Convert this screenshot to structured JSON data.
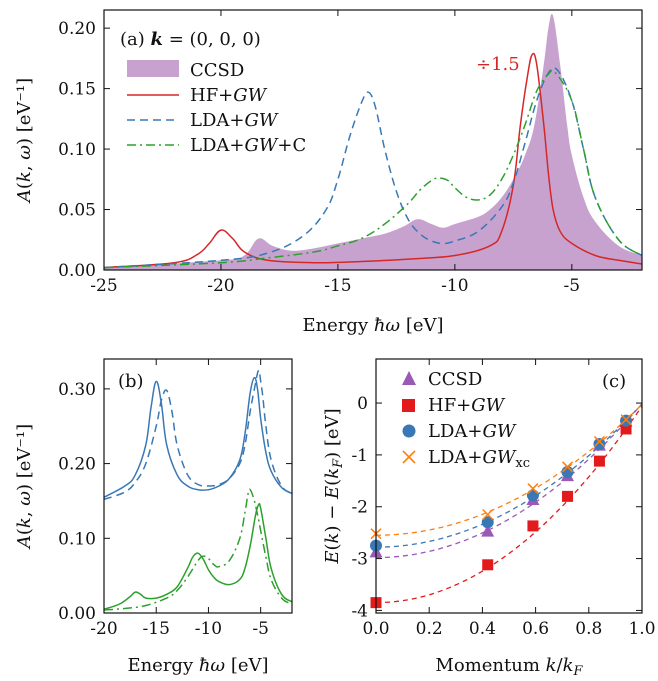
{
  "chart_data": [
    {
      "type": "area+line",
      "panel_label": "(a) k = (0, 0, 0)",
      "annotation": "÷1.5",
      "xlabel": "Energy ħω [eV]",
      "ylabel": "A(k, ω)  [eV⁻¹]",
      "xlim": [
        -25,
        -2
      ],
      "ylim": [
        0,
        0.215
      ],
      "xticks": [
        -25,
        -20,
        -15,
        -10,
        -5
      ],
      "xtick_labels": [
        "-25",
        "-20",
        "-15",
        "-10",
        "-5"
      ],
      "yticks": [
        0,
        0.05,
        0.1,
        0.15,
        0.2
      ],
      "ytick_labels": [
        "0.00",
        "0.05",
        "0.10",
        "0.15",
        "0.20"
      ],
      "legend_position": "top-left",
      "colors": {
        "ccsd": "#c8a2cf",
        "hf": "#d62728",
        "lda": "#3a78b5",
        "ldac": "#2ca02c"
      },
      "series": [
        {
          "name": "CCSD",
          "style": "filled",
          "x": [
            -25,
            -20,
            -19,
            -18.4,
            -17.8,
            -17,
            -16,
            -15,
            -14,
            -13,
            -12.2,
            -11.6,
            -11,
            -10.5,
            -10,
            -9,
            -8.5,
            -8,
            -7.5,
            -7,
            -6.6,
            -6.2,
            -6,
            -5.8,
            -5.5,
            -5.2,
            -5,
            -4.5,
            -4,
            -3,
            -2
          ],
          "y": [
            0.002,
            0.008,
            0.012,
            0.026,
            0.02,
            0.016,
            0.018,
            0.022,
            0.026,
            0.03,
            0.036,
            0.042,
            0.038,
            0.035,
            0.038,
            0.044,
            0.05,
            0.06,
            0.075,
            0.095,
            0.12,
            0.17,
            0.2,
            0.21,
            0.17,
            0.12,
            0.095,
            0.06,
            0.04,
            0.02,
            0.012
          ]
        },
        {
          "name": "HF+GW",
          "style": "solid",
          "x": [
            -25,
            -22,
            -21,
            -20.5,
            -20,
            -19.5,
            -19,
            -18,
            -16,
            -14,
            -12,
            -10,
            -8.5,
            -8,
            -7.5,
            -7.2,
            -6.9,
            -6.7,
            -6.5,
            -6.2,
            -6,
            -5.8,
            -5.5,
            -5,
            -4,
            -3,
            -2
          ],
          "y": [
            0.002,
            0.006,
            0.013,
            0.022,
            0.033,
            0.026,
            0.015,
            0.008,
            0.006,
            0.007,
            0.009,
            0.012,
            0.02,
            0.032,
            0.07,
            0.12,
            0.16,
            0.178,
            0.17,
            0.12,
            0.08,
            0.05,
            0.032,
            0.022,
            0.012,
            0.008,
            0.005
          ]
        },
        {
          "name": "LDA+GW",
          "style": "dashed",
          "x": [
            -25,
            -20,
            -18,
            -16.5,
            -15.5,
            -15,
            -14.5,
            -14,
            -13.7,
            -13.4,
            -13,
            -12.5,
            -12,
            -11.5,
            -11,
            -10.5,
            -10,
            -9,
            -8,
            -7.5,
            -7,
            -6.5,
            -6,
            -5.6,
            -5,
            -4.5,
            -4,
            -3,
            -2
          ],
          "y": [
            0.002,
            0.008,
            0.014,
            0.028,
            0.05,
            0.075,
            0.11,
            0.138,
            0.147,
            0.135,
            0.1,
            0.065,
            0.042,
            0.03,
            0.024,
            0.022,
            0.024,
            0.032,
            0.052,
            0.072,
            0.105,
            0.14,
            0.163,
            0.165,
            0.14,
            0.1,
            0.06,
            0.025,
            0.012
          ]
        },
        {
          "name": "LDA+GW+C",
          "style": "dashdot",
          "x": [
            -25,
            -20,
            -18,
            -16,
            -15,
            -14,
            -13,
            -12,
            -11.5,
            -11,
            -10.7,
            -10.3,
            -10,
            -9.5,
            -9,
            -8.5,
            -8,
            -7.5,
            -7,
            -6.5,
            -6,
            -5.7,
            -5,
            -4.5,
            -4,
            -3,
            -2
          ],
          "y": [
            0.002,
            0.006,
            0.01,
            0.015,
            0.02,
            0.026,
            0.038,
            0.055,
            0.066,
            0.074,
            0.076,
            0.074,
            0.068,
            0.06,
            0.058,
            0.062,
            0.075,
            0.095,
            0.12,
            0.148,
            0.162,
            0.163,
            0.14,
            0.1,
            0.06,
            0.025,
            0.012
          ]
        }
      ]
    },
    {
      "type": "line",
      "panel_label": "(b)",
      "xlabel": "Energy ħω [eV]",
      "ylabel": "A(k, ω)  [eV⁻¹]",
      "xlim": [
        -20,
        -2
      ],
      "ylim": [
        0,
        0.34
      ],
      "xticks": [
        -20,
        -15,
        -10,
        -5
      ],
      "xtick_labels": [
        "-20",
        "-15",
        "-10",
        "-5"
      ],
      "yticks": [
        0,
        0.1,
        0.2,
        0.3
      ],
      "ytick_labels": [
        "0.00",
        "0.10",
        "0.20",
        "0.30"
      ],
      "series": [
        {
          "name": "upper-solid",
          "color": "#3a78b5",
          "style": "solid",
          "x": [
            -20,
            -18,
            -17,
            -16,
            -15.5,
            -15,
            -14.5,
            -14,
            -13,
            -12,
            -11,
            -10,
            -9,
            -8,
            -7,
            -6.5,
            -6,
            -5.6,
            -5.3,
            -5,
            -4.5,
            -4,
            -3,
            -2
          ],
          "y": [
            0.155,
            0.17,
            0.185,
            0.225,
            0.275,
            0.31,
            0.28,
            0.225,
            0.185,
            0.17,
            0.165,
            0.165,
            0.17,
            0.18,
            0.205,
            0.24,
            0.295,
            0.315,
            0.3,
            0.26,
            0.215,
            0.19,
            0.168,
            0.16
          ]
        },
        {
          "name": "upper-dashed",
          "color": "#3a78b5",
          "style": "dashed",
          "x": [
            -20,
            -18,
            -17,
            -16,
            -15,
            -14.5,
            -14,
            -13.5,
            -13,
            -12,
            -11,
            -10,
            -9,
            -8,
            -7,
            -6.5,
            -6,
            -5.6,
            -5.2,
            -5,
            -4.8,
            -4.5,
            -4,
            -3,
            -2
          ],
          "y": [
            0.152,
            0.162,
            0.175,
            0.2,
            0.25,
            0.285,
            0.298,
            0.27,
            0.225,
            0.185,
            0.172,
            0.17,
            0.172,
            0.18,
            0.2,
            0.225,
            0.27,
            0.3,
            0.325,
            0.31,
            0.29,
            0.25,
            0.205,
            0.17,
            0.16
          ]
        },
        {
          "name": "lower-solid",
          "color": "#2ca02c",
          "style": "solid",
          "x": [
            -20,
            -18.5,
            -17.5,
            -17,
            -16.5,
            -16,
            -15,
            -14,
            -13,
            -12,
            -11.5,
            -11,
            -10.5,
            -10,
            -9.5,
            -9,
            -8,
            -7,
            -6.5,
            -6,
            -5.5,
            -5.2,
            -5,
            -4.5,
            -4,
            -3,
            -2
          ],
          "y": [
            0.005,
            0.012,
            0.022,
            0.028,
            0.025,
            0.02,
            0.02,
            0.025,
            0.035,
            0.06,
            0.075,
            0.08,
            0.072,
            0.058,
            0.048,
            0.042,
            0.038,
            0.045,
            0.06,
            0.09,
            0.13,
            0.145,
            0.14,
            0.1,
            0.06,
            0.025,
            0.015
          ]
        },
        {
          "name": "lower-dashdot",
          "color": "#2ca02c",
          "style": "dashdot",
          "x": [
            -20,
            -18,
            -16,
            -14,
            -13,
            -12,
            -11,
            -10.5,
            -10,
            -9.5,
            -9,
            -8,
            -7,
            -6.5,
            -6.2,
            -6,
            -5.6,
            -5.2,
            -5,
            -4.5,
            -4,
            -3,
            -2
          ],
          "y": [
            0.004,
            0.006,
            0.01,
            0.02,
            0.03,
            0.048,
            0.07,
            0.076,
            0.073,
            0.065,
            0.062,
            0.07,
            0.1,
            0.135,
            0.16,
            0.165,
            0.15,
            0.125,
            0.11,
            0.075,
            0.045,
            0.02,
            0.012
          ]
        }
      ]
    },
    {
      "type": "scatter",
      "panel_label": "(c)",
      "xlabel": "Momentum k/k_F",
      "ylabel": "E(k) − E(k_F)  [eV]",
      "xlim": [
        0,
        1
      ],
      "ylim": [
        -4.05,
        0.85
      ],
      "xticks": [
        0,
        0.2,
        0.4,
        0.6,
        0.8,
        1.0
      ],
      "xtick_labels": [
        "0.0",
        "0.2",
        "0.4",
        "0.6",
        "0.8",
        "1.0"
      ],
      "yticks": [
        -4,
        -3,
        -2,
        -1,
        0
      ],
      "ytick_labels": [
        "-4",
        "-3",
        "-2",
        "-1",
        "0"
      ],
      "legend_position": "top-left",
      "series": [
        {
          "name": "CCSD",
          "marker": "triangle",
          "color": "#9b59b6",
          "x": [
            0.0,
            0.42,
            0.59,
            0.72,
            0.84,
            0.94
          ],
          "y": [
            -2.88,
            -2.48,
            -1.87,
            -1.41,
            -0.82,
            -0.36
          ],
          "fit_min": -2.98
        },
        {
          "name": "HF+GW",
          "marker": "square",
          "color": "#e31a1c",
          "x": [
            0.0,
            0.42,
            0.59,
            0.72,
            0.84,
            0.94
          ],
          "y": [
            -3.85,
            -3.12,
            -2.37,
            -1.8,
            -1.12,
            -0.5
          ],
          "fit_min": -3.85
        },
        {
          "name": "LDA+GW",
          "marker": "circle",
          "color": "#3a78b5",
          "x": [
            0.0,
            0.42,
            0.59,
            0.72,
            0.84,
            0.94
          ],
          "y": [
            -2.75,
            -2.3,
            -1.78,
            -1.33,
            -0.79,
            -0.34
          ],
          "fit_min": -2.78
        },
        {
          "name": "LDA+GW_xc",
          "marker": "x",
          "color": "#ff7f0e",
          "x": [
            0.0,
            0.42,
            0.59,
            0.72,
            0.84,
            0.94
          ],
          "y": [
            -2.52,
            -2.15,
            -1.65,
            -1.23,
            -0.74,
            -0.32
          ],
          "fit_min": -2.55
        }
      ]
    }
  ]
}
